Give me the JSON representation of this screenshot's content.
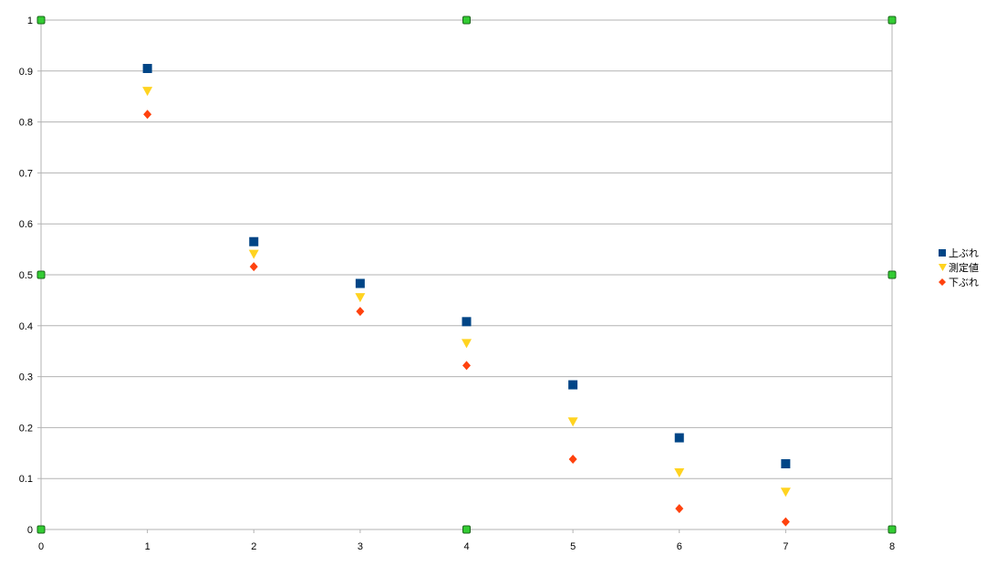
{
  "chart_data": {
    "type": "scatter",
    "title": "",
    "xlabel": "",
    "ylabel": "",
    "xlim": [
      0,
      8
    ],
    "ylim": [
      0,
      1
    ],
    "x_ticks": [
      0,
      1,
      2,
      3,
      4,
      5,
      6,
      7,
      8
    ],
    "y_ticks": [
      0,
      0.1,
      0.2,
      0.3,
      0.4,
      0.5,
      0.6,
      0.7,
      0.8,
      0.9,
      1
    ],
    "x_tick_labels": [
      "0",
      "1",
      "2",
      "3",
      "4",
      "5",
      "6",
      "7",
      "8"
    ],
    "y_tick_labels": [
      "0",
      "0.1",
      "0.2",
      "0.3",
      "0.4",
      "0.5",
      "0.6",
      "0.7",
      "0.8",
      "0.9",
      "1"
    ],
    "grid": "horizontal",
    "legend_position": "right",
    "series": [
      {
        "name": "上ぶれ",
        "marker": "square",
        "color": "#004586",
        "x": [
          1,
          2,
          3,
          4,
          5,
          6,
          7
        ],
        "y": [
          0.905,
          0.565,
          0.483,
          0.408,
          0.284,
          0.18,
          0.129
        ]
      },
      {
        "name": "測定値",
        "marker": "triangle-down",
        "color": "#ffd320",
        "x": [
          1,
          2,
          3,
          4,
          5,
          6,
          7
        ],
        "y": [
          0.86,
          0.54,
          0.455,
          0.365,
          0.211,
          0.111,
          0.073
        ]
      },
      {
        "name": "下ぶれ",
        "marker": "diamond",
        "color": "#ff420e",
        "x": [
          1,
          2,
          3,
          4,
          5,
          6,
          7
        ],
        "y": [
          0.815,
          0.516,
          0.428,
          0.322,
          0.138,
          0.041,
          0.015
        ]
      }
    ],
    "selection_handles": {
      "color": "#33cc33",
      "border": "#1a661a",
      "anchors": [
        [
          0,
          1
        ],
        [
          4,
          1
        ],
        [
          8,
          1
        ],
        [
          0,
          0.5
        ],
        [
          8,
          0.5
        ],
        [
          0,
          0
        ],
        [
          4,
          0
        ],
        [
          8,
          0
        ]
      ]
    }
  }
}
